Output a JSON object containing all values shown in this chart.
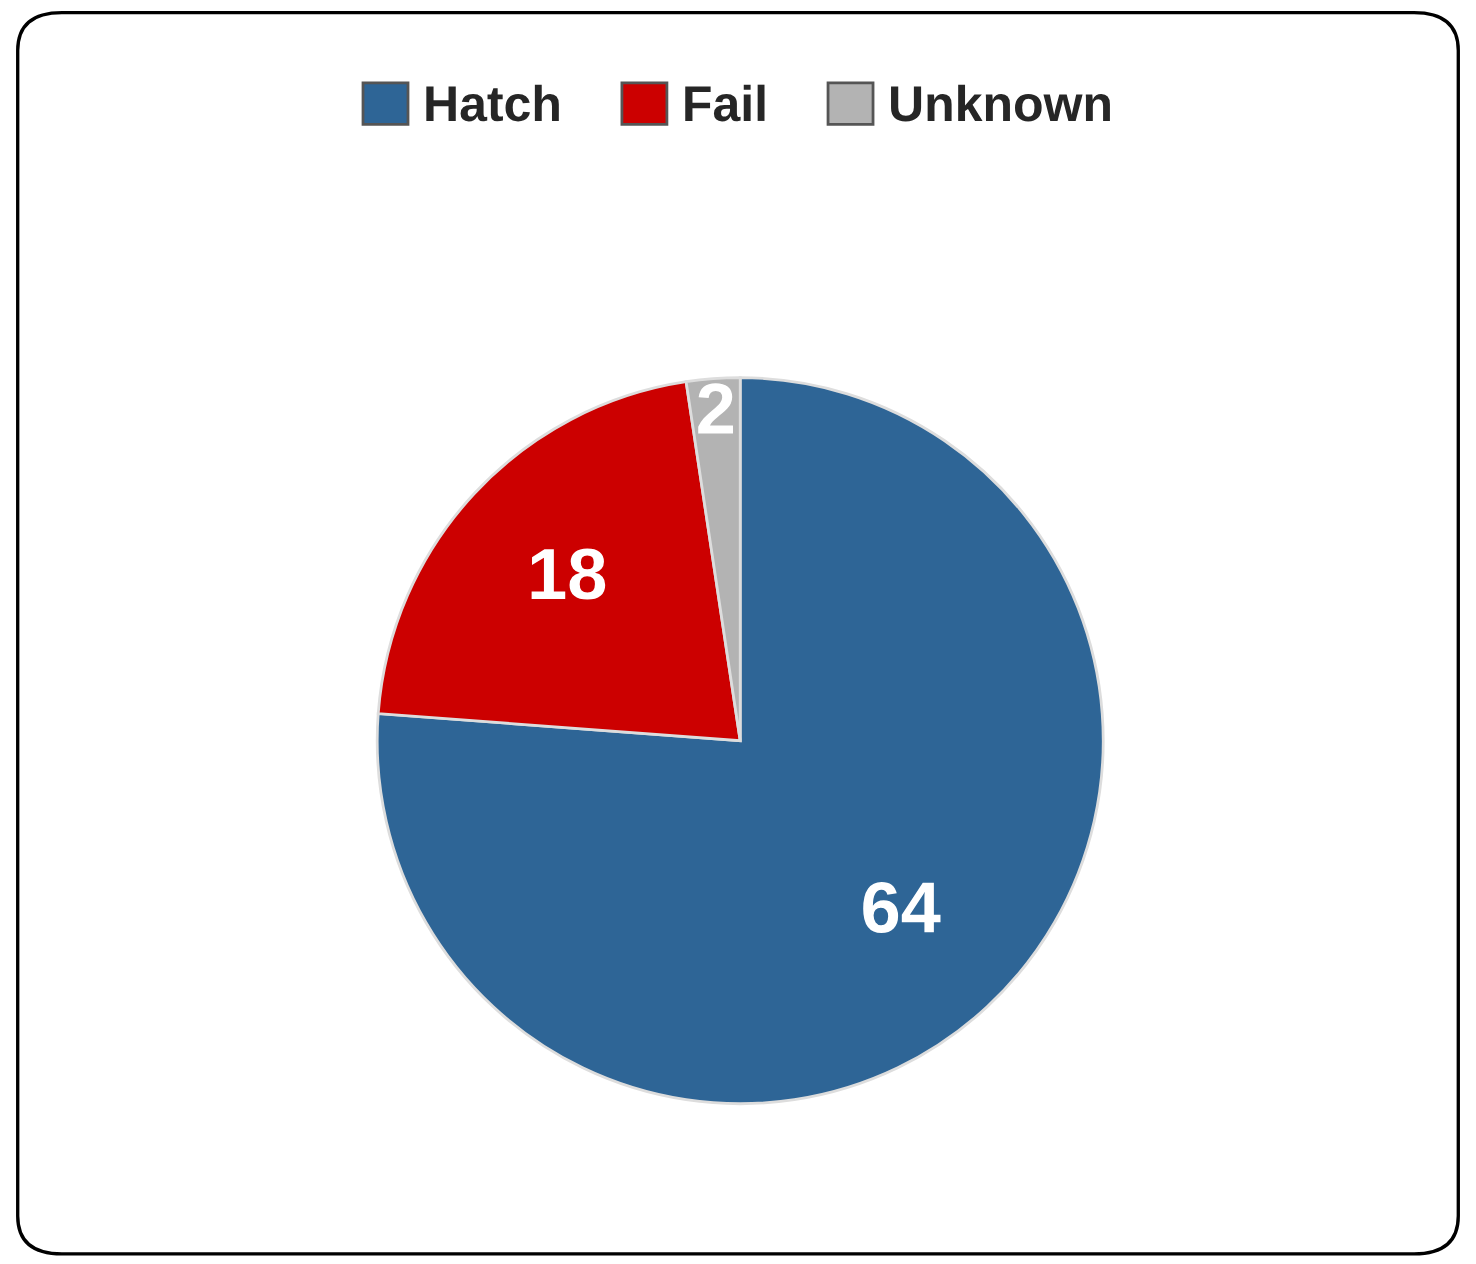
{
  "chart_data": {
    "type": "pie",
    "categories": [
      "Hatch",
      "Fail",
      "Unknown"
    ],
    "values": [
      64,
      18,
      2
    ],
    "colors": [
      "#2e6596",
      "#cc0000",
      "#b3b3b3"
    ],
    "data_labels": true,
    "legend": "top"
  }
}
